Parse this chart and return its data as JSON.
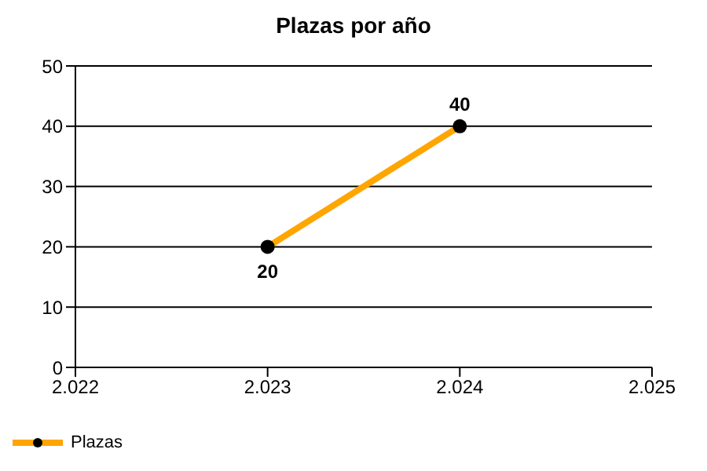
{
  "chart_data": {
    "type": "line",
    "title": "Plazas por año",
    "x": [
      2023,
      2024
    ],
    "series": [
      {
        "name": "Plazas",
        "color": "#ffa500",
        "values": [
          20,
          40
        ]
      }
    ],
    "xlim": [
      2022,
      2025
    ],
    "xticks": [
      {
        "value": 2022,
        "label": "2.022"
      },
      {
        "value": 2023,
        "label": "2.023"
      },
      {
        "value": 2024,
        "label": "2.024"
      },
      {
        "value": 2025,
        "label": "2.025"
      }
    ],
    "ylim": [
      0,
      50
    ],
    "yticks": [
      0,
      10,
      20,
      30,
      40,
      50
    ],
    "grid": "y",
    "legend": "bottom left",
    "marker": "circle",
    "line_style": "solid",
    "data_labels": true
  }
}
